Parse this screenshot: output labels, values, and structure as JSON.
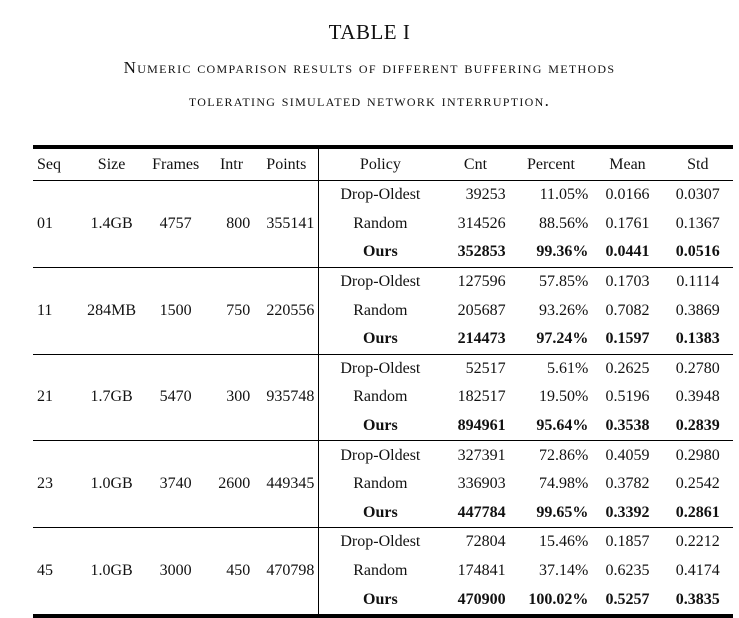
{
  "caption": {
    "number": "TABLE I",
    "title_line1": "Numeric comparison results of different buffering methods",
    "title_line2": "tolerating simulated network interruption."
  },
  "table": {
    "headers": [
      "Seq",
      "Size",
      "Frames",
      "Intr",
      "Points",
      "Policy",
      "Cnt",
      "Percent",
      "Mean",
      "Std"
    ],
    "groups": [
      {
        "seq": "01",
        "size": "1.4GB",
        "frames": "4757",
        "intr": "800",
        "points": "355141",
        "rows": [
          {
            "policy": "Drop-Oldest",
            "cnt": "39253",
            "percent": "11.05%",
            "mean": "0.0166",
            "std": "0.0307"
          },
          {
            "policy": "Random",
            "cnt": "314526",
            "percent": "88.56%",
            "mean": "0.1761",
            "std": "0.1367"
          },
          {
            "policy": "Ours",
            "cnt": "352853",
            "percent": "99.36%",
            "mean": "0.0441",
            "std": "0.0516"
          }
        ]
      },
      {
        "seq": "11",
        "size": "284MB",
        "frames": "1500",
        "intr": "750",
        "points": "220556",
        "rows": [
          {
            "policy": "Drop-Oldest",
            "cnt": "127596",
            "percent": "57.85%",
            "mean": "0.1703",
            "std": "0.1114"
          },
          {
            "policy": "Random",
            "cnt": "205687",
            "percent": "93.26%",
            "mean": "0.7082",
            "std": "0.3869"
          },
          {
            "policy": "Ours",
            "cnt": "214473",
            "percent": "97.24%",
            "mean": "0.1597",
            "std": "0.1383"
          }
        ]
      },
      {
        "seq": "21",
        "size": "1.7GB",
        "frames": "5470",
        "intr": "300",
        "points": "935748",
        "rows": [
          {
            "policy": "Drop-Oldest",
            "cnt": "52517",
            "percent": "5.61%",
            "mean": "0.2625",
            "std": "0.2780"
          },
          {
            "policy": "Random",
            "cnt": "182517",
            "percent": "19.50%",
            "mean": "0.5196",
            "std": "0.3948"
          },
          {
            "policy": "Ours",
            "cnt": "894961",
            "percent": "95.64%",
            "mean": "0.3538",
            "std": "0.2839"
          }
        ]
      },
      {
        "seq": "23",
        "size": "1.0GB",
        "frames": "3740",
        "intr": "2600",
        "points": "449345",
        "rows": [
          {
            "policy": "Drop-Oldest",
            "cnt": "327391",
            "percent": "72.86%",
            "mean": "0.4059",
            "std": "0.2980"
          },
          {
            "policy": "Random",
            "cnt": "336903",
            "percent": "74.98%",
            "mean": "0.3782",
            "std": "0.2542"
          },
          {
            "policy": "Ours",
            "cnt": "447784",
            "percent": "99.65%",
            "mean": "0.3392",
            "std": "0.2861"
          }
        ]
      },
      {
        "seq": "45",
        "size": "1.0GB",
        "frames": "3000",
        "intr": "450",
        "points": "470798",
        "rows": [
          {
            "policy": "Drop-Oldest",
            "cnt": "72804",
            "percent": "15.46%",
            "mean": "0.1857",
            "std": "0.2212"
          },
          {
            "policy": "Random",
            "cnt": "174841",
            "percent": "37.14%",
            "mean": "0.6235",
            "std": "0.4174"
          },
          {
            "policy": "Ours",
            "cnt": "470900",
            "percent": "100.02%",
            "mean": "0.5257",
            "std": "0.3835"
          }
        ]
      }
    ]
  }
}
